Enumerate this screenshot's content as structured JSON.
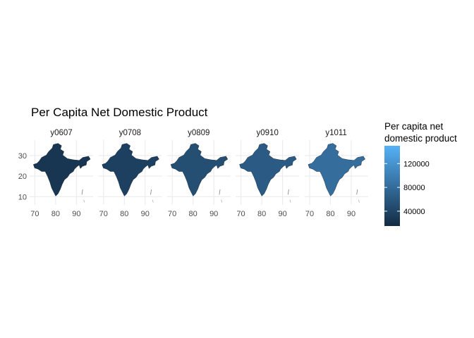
{
  "chart_data": {
    "type": "choropleth-map-facets",
    "title": "Per Capita Net Domestic Product",
    "facets": [
      "y0607",
      "y0708",
      "y0809",
      "y0910",
      "y1011"
    ],
    "facet_shade": [
      0.08,
      0.16,
      0.26,
      0.36,
      0.5
    ],
    "x_ticks": [
      70,
      80,
      90
    ],
    "y_ticks": [
      10,
      20,
      30
    ],
    "xlim": [
      67.5,
      98
    ],
    "ylim": [
      6,
      37.5
    ],
    "grid": true,
    "legend": {
      "title_line1": "Per capita net",
      "title_line2": "domestic product",
      "ticks": [
        120000,
        80000,
        40000
      ],
      "tick_labels": [
        "120000",
        "80000",
        "40000"
      ],
      "range": [
        15000,
        150000
      ],
      "color_low": "#132B43",
      "color_high": "#56B1F7",
      "position": "right"
    }
  }
}
